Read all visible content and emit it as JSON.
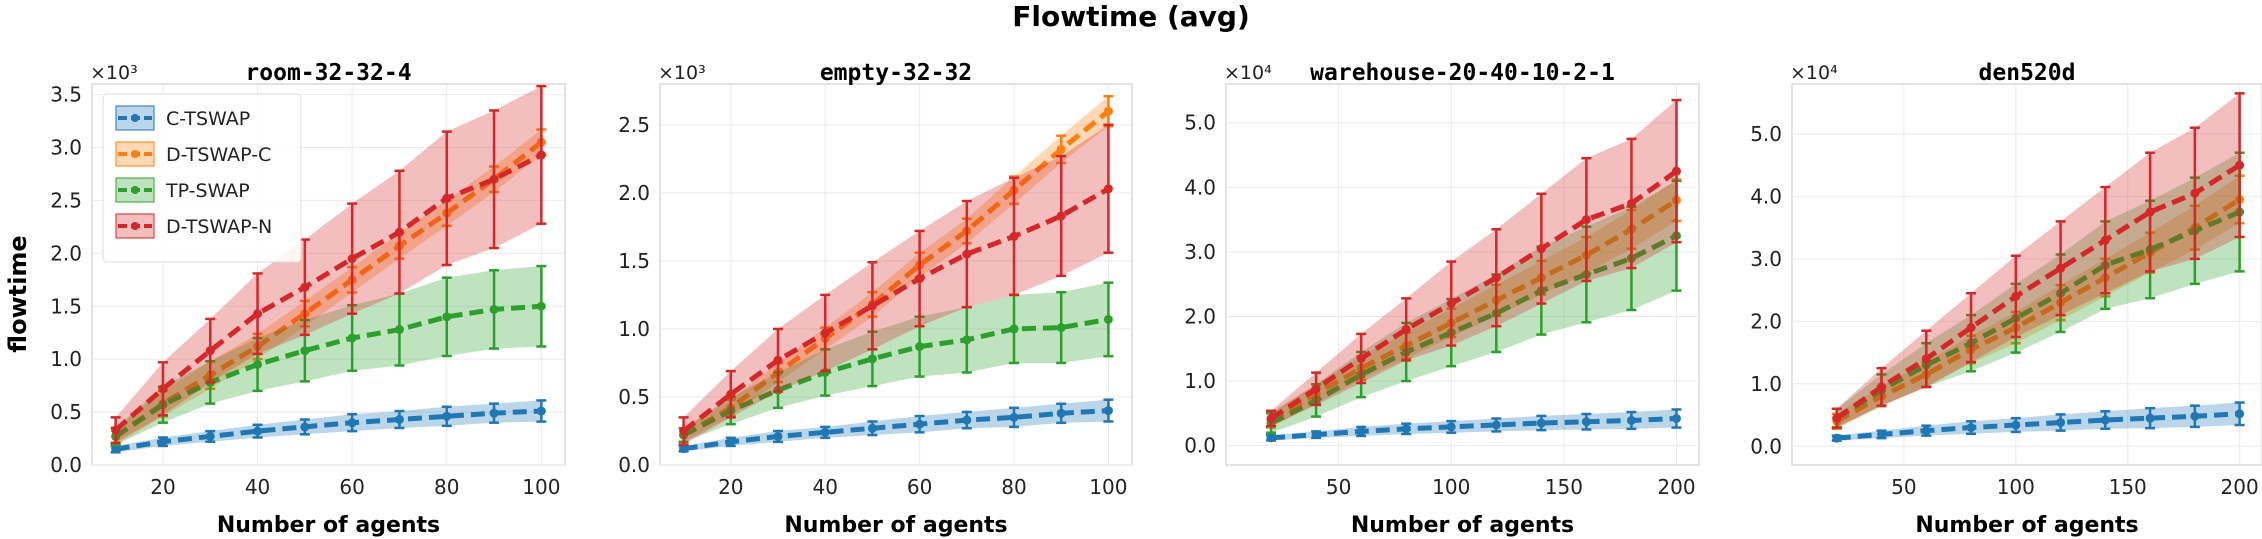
{
  "figure": {
    "title": "Flowtime (avg)",
    "ylabel": "flowtime"
  },
  "legend": {
    "placement": "top-left (first panel)",
    "entries": [
      "C-TSWAP",
      "D-TSWAP-C",
      "TP-SWAP",
      "D-TSWAP-N"
    ]
  },
  "colors": {
    "C-TSWAP": "#1f77b4",
    "D-TSWAP-C": "#ff7f0e",
    "TP-SWAP": "#2ca02c",
    "D-TSWAP-N": "#d62728"
  },
  "chart_data": [
    {
      "type": "line",
      "title": "room-32-32-4",
      "xlabel": "Number of agents",
      "ylabel": "flowtime",
      "multiplier": "×10³",
      "grid": true,
      "xlim": [
        5,
        105
      ],
      "ylim": [
        0,
        3.6
      ],
      "xticks": [
        20,
        40,
        60,
        80,
        100
      ],
      "xtick_labels": [
        "20",
        "40",
        "60",
        "80",
        "100"
      ],
      "yticks": [
        0,
        0.5,
        1.0,
        1.5,
        2.0,
        2.5,
        3.0,
        3.5
      ],
      "ytick_labels": [
        "0.0",
        "0.5",
        "1.0",
        "1.5",
        "2.0",
        "2.5",
        "3.0",
        "3.5"
      ],
      "x": [
        10,
        20,
        30,
        40,
        50,
        60,
        70,
        80,
        90,
        100
      ],
      "series": [
        {
          "name": "C-TSWAP",
          "values": [
            0.15,
            0.22,
            0.27,
            0.32,
            0.36,
            0.4,
            0.43,
            0.46,
            0.49,
            0.51
          ],
          "err": [
            0.03,
            0.04,
            0.05,
            0.06,
            0.07,
            0.08,
            0.08,
            0.09,
            0.09,
            0.1
          ]
        },
        {
          "name": "D-TSWAP-C",
          "values": [
            0.27,
            0.58,
            0.85,
            1.12,
            1.43,
            1.75,
            2.07,
            2.38,
            2.7,
            3.05
          ],
          "err": [
            0.08,
            0.12,
            0.13,
            0.12,
            0.12,
            0.12,
            0.12,
            0.12,
            0.12,
            0.12
          ]
        },
        {
          "name": "TP-SWAP",
          "values": [
            0.27,
            0.57,
            0.78,
            0.95,
            1.08,
            1.2,
            1.28,
            1.4,
            1.47,
            1.5
          ],
          "err": [
            0.08,
            0.17,
            0.2,
            0.25,
            0.29,
            0.31,
            0.34,
            0.37,
            0.37,
            0.38
          ]
        },
        {
          "name": "D-TSWAP-N",
          "values": [
            0.33,
            0.72,
            1.08,
            1.43,
            1.68,
            1.95,
            2.2,
            2.52,
            2.7,
            2.93
          ],
          "err": [
            0.12,
            0.25,
            0.3,
            0.38,
            0.45,
            0.52,
            0.58,
            0.63,
            0.65,
            0.65
          ]
        }
      ]
    },
    {
      "type": "line",
      "title": "empty-32-32",
      "xlabel": "Number of agents",
      "ylabel": "",
      "multiplier": "×10³",
      "grid": true,
      "xlim": [
        5,
        105
      ],
      "ylim": [
        0,
        2.8
      ],
      "xticks": [
        20,
        40,
        60,
        80,
        100
      ],
      "xtick_labels": [
        "20",
        "40",
        "60",
        "80",
        "100"
      ],
      "yticks": [
        0,
        0.5,
        1.0,
        1.5,
        2.0,
        2.5
      ],
      "ytick_labels": [
        "0.0",
        "0.5",
        "1.0",
        "1.5",
        "2.0",
        "2.5"
      ],
      "x": [
        10,
        20,
        30,
        40,
        50,
        60,
        70,
        80,
        90,
        100
      ],
      "series": [
        {
          "name": "C-TSWAP",
          "values": [
            0.12,
            0.17,
            0.21,
            0.24,
            0.27,
            0.3,
            0.33,
            0.35,
            0.38,
            0.4
          ],
          "err": [
            0.02,
            0.03,
            0.04,
            0.04,
            0.05,
            0.06,
            0.06,
            0.07,
            0.07,
            0.08
          ]
        },
        {
          "name": "D-TSWAP-C",
          "values": [
            0.22,
            0.42,
            0.68,
            0.93,
            1.18,
            1.47,
            1.72,
            2.02,
            2.32,
            2.6
          ],
          "err": [
            0.05,
            0.06,
            0.07,
            0.08,
            0.09,
            0.09,
            0.09,
            0.1,
            0.1,
            0.11
          ]
        },
        {
          "name": "TP-SWAP",
          "values": [
            0.22,
            0.4,
            0.55,
            0.68,
            0.78,
            0.87,
            0.92,
            1.0,
            1.01,
            1.07
          ],
          "err": [
            0.05,
            0.1,
            0.13,
            0.17,
            0.2,
            0.22,
            0.24,
            0.25,
            0.26,
            0.27
          ]
        },
        {
          "name": "D-TSWAP-N",
          "values": [
            0.25,
            0.52,
            0.77,
            0.97,
            1.17,
            1.37,
            1.55,
            1.68,
            1.83,
            2.03
          ],
          "err": [
            0.1,
            0.17,
            0.23,
            0.28,
            0.32,
            0.35,
            0.39,
            0.43,
            0.44,
            0.47
          ]
        }
      ]
    },
    {
      "type": "line",
      "title": "warehouse-20-40-10-2-1",
      "xlabel": "Number of agents",
      "ylabel": "",
      "multiplier": "×10⁴",
      "grid": true,
      "xlim": [
        0,
        210
      ],
      "ylim": [
        -0.3,
        5.6
      ],
      "xticks": [
        50,
        100,
        150,
        200
      ],
      "xtick_labels": [
        "50",
        "100",
        "150",
        "200"
      ],
      "yticks": [
        0,
        1.0,
        2.0,
        3.0,
        4.0,
        5.0
      ],
      "ytick_labels": [
        "0.0",
        "1.0",
        "2.0",
        "3.0",
        "4.0",
        "5.0"
      ],
      "x": [
        20,
        40,
        60,
        80,
        100,
        120,
        140,
        160,
        180,
        200
      ],
      "series": [
        {
          "name": "C-TSWAP",
          "values": [
            0.12,
            0.17,
            0.22,
            0.26,
            0.29,
            0.32,
            0.35,
            0.37,
            0.39,
            0.42
          ],
          "err": [
            0.04,
            0.05,
            0.07,
            0.08,
            0.09,
            0.1,
            0.11,
            0.12,
            0.13,
            0.14
          ]
        },
        {
          "name": "D-TSWAP-C",
          "values": [
            0.4,
            0.8,
            1.2,
            1.55,
            1.9,
            2.25,
            2.6,
            2.95,
            3.35,
            3.8
          ],
          "err": [
            0.12,
            0.15,
            0.18,
            0.2,
            0.22,
            0.24,
            0.26,
            0.28,
            0.3,
            0.32
          ]
        },
        {
          "name": "TP-SWAP",
          "values": [
            0.35,
            0.7,
            1.1,
            1.45,
            1.75,
            2.05,
            2.4,
            2.65,
            2.9,
            3.25
          ],
          "err": [
            0.15,
            0.25,
            0.35,
            0.45,
            0.52,
            0.6,
            0.68,
            0.74,
            0.8,
            0.85
          ]
        },
        {
          "name": "D-TSWAP-N",
          "values": [
            0.42,
            0.88,
            1.35,
            1.8,
            2.2,
            2.6,
            3.05,
            3.5,
            3.75,
            4.25
          ],
          "err": [
            0.12,
            0.25,
            0.38,
            0.48,
            0.65,
            0.75,
            0.85,
            0.95,
            1.0,
            1.1
          ]
        }
      ]
    },
    {
      "type": "line",
      "title": "den520d",
      "xlabel": "Number of agents",
      "ylabel": "",
      "multiplier": "×10⁴",
      "grid": true,
      "xlim": [
        0,
        210
      ],
      "ylim": [
        -0.3,
        5.8
      ],
      "xticks": [
        50,
        100,
        150,
        200
      ],
      "xtick_labels": [
        "50",
        "100",
        "150",
        "200"
      ],
      "yticks": [
        0,
        1.0,
        2.0,
        3.0,
        4.0,
        5.0
      ],
      "ytick_labels": [
        "0.0",
        "1.0",
        "2.0",
        "3.0",
        "4.0",
        "5.0"
      ],
      "x": [
        20,
        40,
        60,
        80,
        100,
        120,
        140,
        160,
        180,
        200
      ],
      "series": [
        {
          "name": "C-TSWAP",
          "values": [
            0.13,
            0.19,
            0.25,
            0.3,
            0.34,
            0.38,
            0.42,
            0.45,
            0.48,
            0.52
          ],
          "err": [
            0.04,
            0.06,
            0.08,
            0.1,
            0.11,
            0.13,
            0.14,
            0.16,
            0.17,
            0.18
          ]
        },
        {
          "name": "D-TSWAP-C",
          "values": [
            0.4,
            0.8,
            1.15,
            1.55,
            1.9,
            2.3,
            2.7,
            3.1,
            3.5,
            3.95
          ],
          "err": [
            0.12,
            0.16,
            0.2,
            0.22,
            0.25,
            0.28,
            0.3,
            0.32,
            0.35,
            0.38
          ]
        },
        {
          "name": "TP-SWAP",
          "values": [
            0.45,
            0.9,
            1.3,
            1.65,
            2.05,
            2.45,
            2.9,
            3.15,
            3.45,
            3.75
          ],
          "err": [
            0.15,
            0.25,
            0.35,
            0.45,
            0.55,
            0.62,
            0.7,
            0.78,
            0.85,
            0.95
          ]
        },
        {
          "name": "D-TSWAP-N",
          "values": [
            0.45,
            0.95,
            1.4,
            1.9,
            2.4,
            2.85,
            3.3,
            3.75,
            4.05,
            4.5
          ],
          "err": [
            0.15,
            0.3,
            0.45,
            0.55,
            0.65,
            0.75,
            0.85,
            0.95,
            1.05,
            1.15
          ]
        }
      ]
    }
  ]
}
